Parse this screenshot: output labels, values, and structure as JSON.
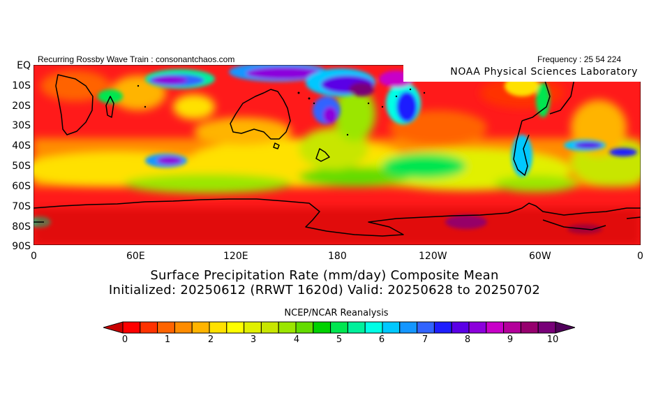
{
  "header": {
    "left_text": "Recurring Rossby Wave Train : consonantchaos.com",
    "right_text": "Frequency : 25 54 224"
  },
  "map": {
    "credit": "NOAA Physical Sciences Laboratory",
    "lat_labels": [
      "EQ",
      "10S",
      "20S",
      "30S",
      "40S",
      "50S",
      "60S",
      "70S",
      "80S",
      "90S"
    ],
    "lon_labels": [
      "0",
      "60E",
      "120E",
      "180",
      "120W",
      "60W",
      "0"
    ],
    "region": "Southern Hemisphere, 0 to 90S, 0 to 360 longitude",
    "style_colors": {
      "background_field": "#ff1a1a",
      "coast": "#000000"
    }
  },
  "title": {
    "line1": "Surface Precipitation Rate (mm/day) Composite Mean",
    "line2": "Initialized: 20250612 (RRWT 1620d) Valid: 20250628 to 20250702"
  },
  "source": "NCEP/NCAR Reanalysis",
  "colorbar": {
    "labels": [
      "0",
      "1",
      "2",
      "3",
      "4",
      "5",
      "6",
      "7",
      "8",
      "9",
      "10"
    ],
    "colors": [
      "#c80000",
      "#ff0000",
      "#ff3200",
      "#ff6400",
      "#ff8c00",
      "#ffb400",
      "#ffe100",
      "#ffff00",
      "#e1f000",
      "#c8e600",
      "#9be600",
      "#64dc00",
      "#00d200",
      "#00e650",
      "#00f09b",
      "#00ffe6",
      "#00c8ff",
      "#1496ff",
      "#3264ff",
      "#1e1eff",
      "#5a00e6",
      "#8c00dc",
      "#c800c8",
      "#b4009b",
      "#96006e",
      "#780078",
      "#50005a"
    ]
  }
}
